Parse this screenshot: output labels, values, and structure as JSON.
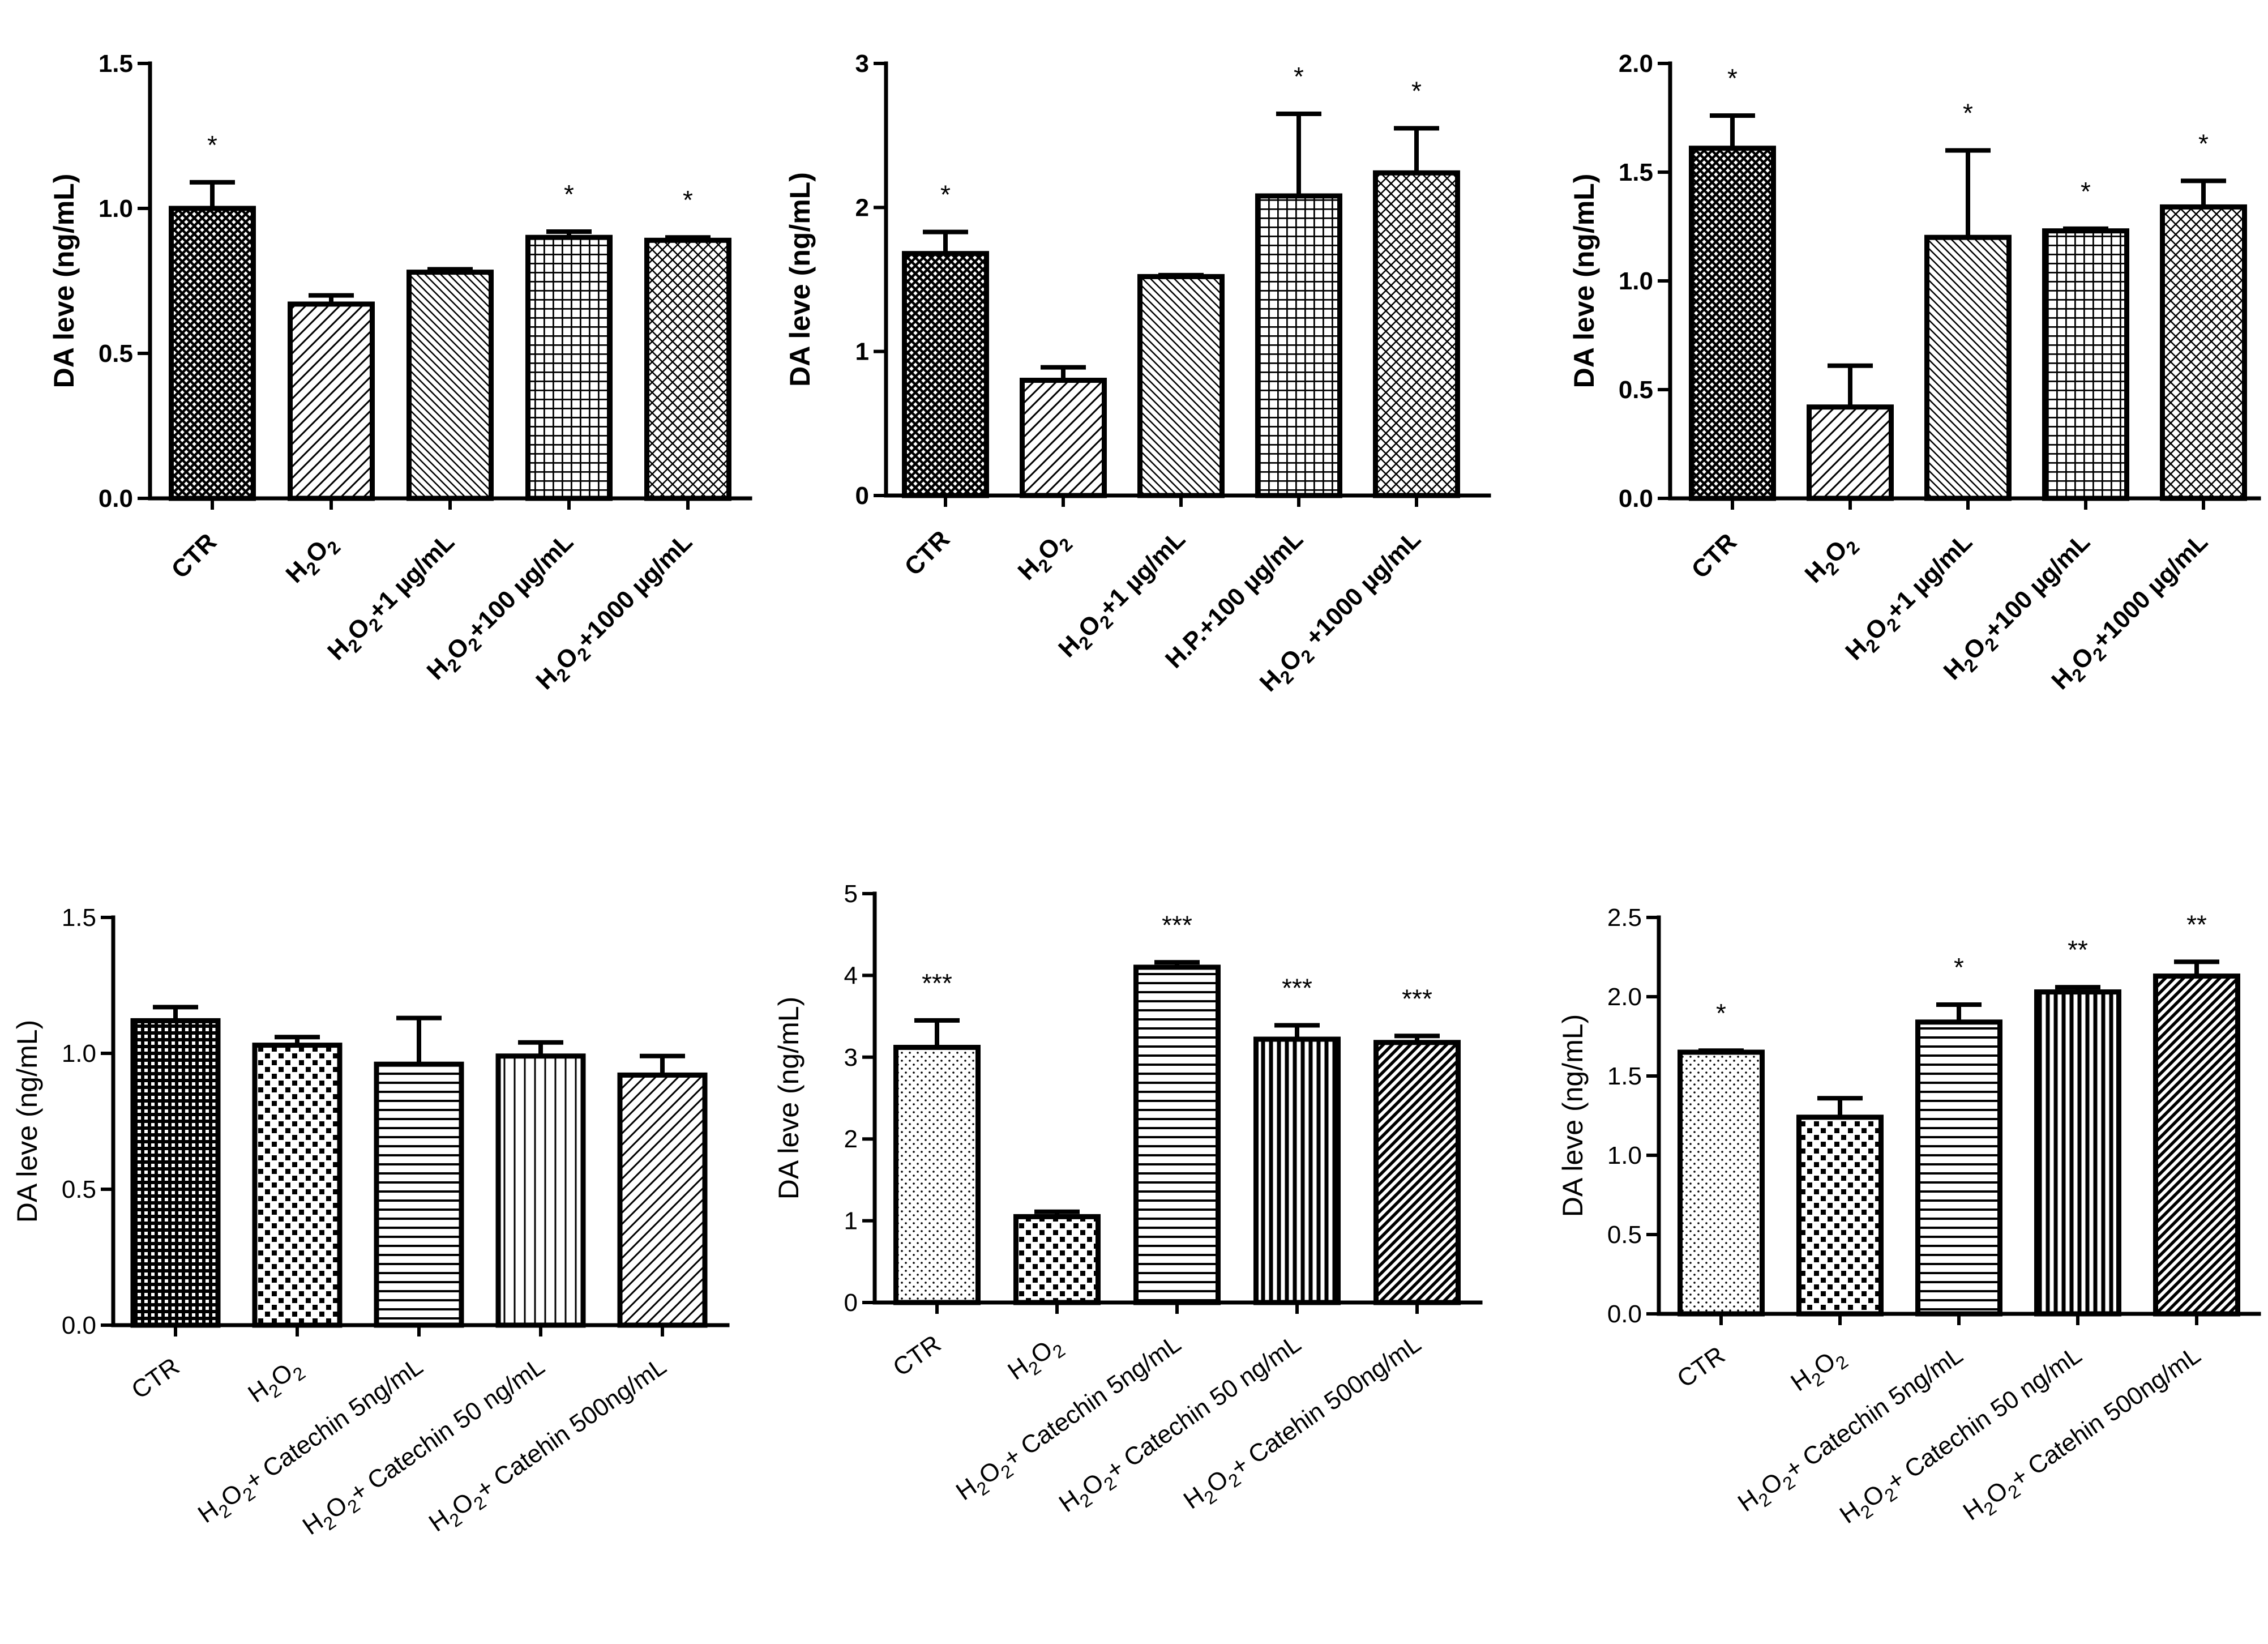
{
  "chart_data": [
    {
      "type": "bar",
      "title": "",
      "xlabel": "",
      "ylabel": "DA leve (ng/mL)",
      "ylim": [
        0,
        1.5
      ],
      "yticks": [
        "0.0",
        "0.5",
        "1.0",
        "1.5"
      ],
      "categories": [
        {
          "main": "CTR"
        },
        {
          "main": "H",
          "sub1": "2",
          "mid": "O",
          "sub2": "2",
          "rest": ""
        },
        {
          "main": "H",
          "sub1": "2",
          "mid": "O",
          "sub2": "2",
          "rest": "+1 µg/mL"
        },
        {
          "main": "H",
          "sub1": "2",
          "mid": "O",
          "sub2": "2",
          "rest": "+100 µg/mL"
        },
        {
          "main": "H",
          "sub1": "2",
          "mid": "O",
          "sub2": "2",
          "rest": "+1000 µg/mL"
        }
      ],
      "values": [
        1.0,
        0.67,
        0.78,
        0.9,
        0.89
      ],
      "errors": [
        0.09,
        0.03,
        0.01,
        0.02,
        0.01
      ],
      "significance": [
        "*",
        "",
        "",
        "*",
        "*"
      ],
      "patterns": [
        "crosshatch",
        "diag-right",
        "diag-right-fine",
        "grid",
        "diamond"
      ]
    },
    {
      "type": "bar",
      "title": "",
      "xlabel": "",
      "ylabel": "DA leve (ng/mL)",
      "ylim": [
        0,
        3
      ],
      "yticks": [
        "0",
        "1",
        "2",
        "3"
      ],
      "categories": [
        {
          "main": "CTR"
        },
        {
          "main": "H",
          "sub1": "2",
          "mid": "O",
          "sub2": "2",
          "rest": ""
        },
        {
          "main": "H",
          "sub1": "2",
          "mid": "O",
          "sub2": "2",
          "rest": "+1 µg/mL"
        },
        {
          "main": "H.P.+100 µg/mL"
        },
        {
          "main": "H",
          "sub1": "2",
          "mid": "O",
          "sub2": "2",
          "rest": " +1000 µg/mL"
        }
      ],
      "values": [
        1.68,
        0.8,
        1.52,
        2.08,
        2.24
      ],
      "errors": [
        0.15,
        0.09,
        0.01,
        0.57,
        0.31
      ],
      "significance": [
        "*",
        "",
        "",
        "*",
        "*"
      ],
      "patterns": [
        "crosshatch",
        "diag-right",
        "diag-right-fine",
        "grid",
        "diamond"
      ]
    },
    {
      "type": "bar",
      "title": "",
      "xlabel": "",
      "ylabel": "DA leve (ng/mL)",
      "ylim": [
        0,
        2.0
      ],
      "yticks": [
        "0.0",
        "0.5",
        "1.0",
        "1.5",
        "2.0"
      ],
      "categories": [
        {
          "main": "CTR"
        },
        {
          "main": "H",
          "sub1": "2",
          "mid": "O",
          "sub2": "2",
          "rest": ""
        },
        {
          "main": "H",
          "sub1": "2",
          "mid": "O",
          "sub2": "2",
          "rest": "+1 µg/mL"
        },
        {
          "main": "H",
          "sub1": "2",
          "mid": "O",
          "sub2": "2",
          "rest": "+100 µg/mL"
        },
        {
          "main": "H",
          "sub1": "2",
          "mid": "O",
          "sub2": "2",
          "rest": "+1000 µg/mL"
        }
      ],
      "values": [
        1.61,
        0.42,
        1.2,
        1.23,
        1.34
      ],
      "errors": [
        0.15,
        0.19,
        0.4,
        0.01,
        0.12
      ],
      "significance": [
        "*",
        "",
        "*",
        "*",
        "*"
      ],
      "patterns": [
        "crosshatch",
        "diag-right",
        "diag-right-fine",
        "grid",
        "diamond"
      ]
    },
    {
      "type": "bar",
      "title": "",
      "xlabel": "",
      "ylabel": "DA leve (ng/mL)",
      "ylim": [
        0,
        1.5
      ],
      "yticks": [
        "0.0",
        "0.5",
        "1.0",
        "1.5"
      ],
      "categories": [
        {
          "main": "CTR"
        },
        {
          "main": "H",
          "sub1": "2",
          "mid": "O",
          "sub2": "2",
          "rest": ""
        },
        {
          "main": "H",
          "sub1": "2",
          "mid": "O",
          "sub2": "2",
          "rest": "+ Catechin 5ng/mL"
        },
        {
          "main": "H",
          "sub1": "2",
          "mid": "O",
          "sub2": "2",
          "rest": "+ Catechin 50 ng/mL"
        },
        {
          "main": "H",
          "sub1": "2",
          "mid": "O",
          "sub2": "2",
          "rest": "+ Catehin 500ng/mL"
        }
      ],
      "values": [
        1.12,
        1.03,
        0.96,
        0.99,
        0.92
      ],
      "errors": [
        0.05,
        0.03,
        0.17,
        0.05,
        0.07
      ],
      "significance": [
        "",
        "",
        "",
        "",
        ""
      ],
      "patterns": [
        "dots-dense",
        "checker",
        "horizontal",
        "vertical",
        "diag-right"
      ]
    },
    {
      "type": "bar",
      "title": "",
      "xlabel": "",
      "ylabel": "DA leve (ng/mL)",
      "ylim": [
        0,
        5
      ],
      "yticks": [
        "0",
        "1",
        "2",
        "3",
        "4",
        "5"
      ],
      "categories": [
        {
          "main": "CTR"
        },
        {
          "main": "H",
          "sub1": "2",
          "mid": "O",
          "sub2": "2",
          "rest": ""
        },
        {
          "main": "H",
          "sub1": "2",
          "mid": "O",
          "sub2": "2",
          "rest": "+ Catechin 5ng/mL"
        },
        {
          "main": "H",
          "sub1": "2",
          "mid": "O",
          "sub2": "2",
          "rest": "+ Catechin 50 ng/mL"
        },
        {
          "main": "H",
          "sub1": "2",
          "mid": "O",
          "sub2": "2",
          "rest": "+ Catehin 500ng/mL"
        }
      ],
      "values": [
        3.12,
        1.05,
        4.1,
        3.22,
        3.18
      ],
      "errors": [
        0.33,
        0.06,
        0.06,
        0.17,
        0.08
      ],
      "significance": [
        "***",
        "",
        "***",
        "***",
        "***"
      ],
      "patterns": [
        "dots-sparse",
        "checker",
        "horizontal",
        "vertical-dense",
        "diag-dense"
      ]
    },
    {
      "type": "bar",
      "title": "",
      "xlabel": "",
      "ylabel": "DA leve (ng/mL)",
      "ylim": [
        0,
        2.5
      ],
      "yticks": [
        "0.0",
        "0.5",
        "1.0",
        "1.5",
        "2.0",
        "2.5"
      ],
      "categories": [
        {
          "main": "CTR"
        },
        {
          "main": "H",
          "sub1": "2",
          "mid": "O",
          "sub2": "2",
          "rest": ""
        },
        {
          "main": "H",
          "sub1": "2",
          "mid": "O",
          "sub2": "2",
          "rest": "+ Catechin 5ng/mL"
        },
        {
          "main": "H",
          "sub1": "2",
          "mid": "O",
          "sub2": "2",
          "rest": "+ Catechin 50 ng/mL"
        },
        {
          "main": "H",
          "sub1": "2",
          "mid": "O",
          "sub2": "2",
          "rest": "+ Catehin 500ng/mL"
        }
      ],
      "values": [
        1.65,
        1.24,
        1.84,
        2.03,
        2.13
      ],
      "errors": [
        0.01,
        0.12,
        0.11,
        0.03,
        0.09
      ],
      "significance": [
        "*",
        "",
        "*",
        "**",
        "**"
      ],
      "patterns": [
        "dots-sparse",
        "checker",
        "horizontal",
        "vertical-dense",
        "diag-dense"
      ]
    }
  ]
}
